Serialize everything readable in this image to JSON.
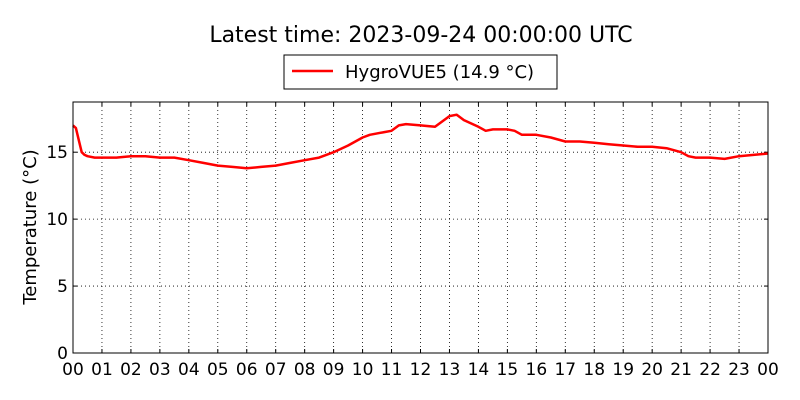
{
  "chart_data": {
    "type": "line",
    "title": "Latest time: 2023-09-24 00:00:00 UTC",
    "xlabel": "",
    "ylabel": "Temperature (°C)",
    "xlim": [
      0,
      24
    ],
    "ylim": [
      0,
      18.75
    ],
    "x_tick_values": [
      0,
      1,
      2,
      3,
      4,
      5,
      6,
      7,
      8,
      9,
      10,
      11,
      12,
      13,
      14,
      15,
      16,
      17,
      18,
      19,
      20,
      21,
      22,
      23,
      24
    ],
    "x_tick_labels": [
      "00",
      "01",
      "02",
      "03",
      "04",
      "05",
      "06",
      "07",
      "08",
      "09",
      "10",
      "11",
      "12",
      "13",
      "14",
      "15",
      "16",
      "17",
      "18",
      "19",
      "20",
      "21",
      "22",
      "23",
      "00"
    ],
    "y_tick_values": [
      0,
      5,
      10,
      15
    ],
    "y_tick_labels": [
      "0",
      "5",
      "10",
      "15"
    ],
    "grid": true,
    "legend_position": "top-center",
    "series": [
      {
        "name": "HygroVUE5 (14.9 °C)",
        "color": "#ff0000",
        "x": [
          0.0,
          0.1,
          0.2,
          0.3,
          0.4,
          0.5,
          0.75,
          1.0,
          1.5,
          2.0,
          2.5,
          3.0,
          3.5,
          4.0,
          4.5,
          5.0,
          5.5,
          6.0,
          6.5,
          7.0,
          7.5,
          8.0,
          8.5,
          9.0,
          9.5,
          10.0,
          10.25,
          10.75,
          11.0,
          11.25,
          11.5,
          12.0,
          12.5,
          13.0,
          13.25,
          13.5,
          14.0,
          14.25,
          14.5,
          15.0,
          15.25,
          15.5,
          16.0,
          16.5,
          17.0,
          17.5,
          18.0,
          18.5,
          19.0,
          19.5,
          20.0,
          20.5,
          21.0,
          21.25,
          21.5,
          22.0,
          22.5,
          23.0,
          23.5,
          24.0
        ],
        "y": [
          17.0,
          16.8,
          15.9,
          15.0,
          14.8,
          14.7,
          14.6,
          14.6,
          14.6,
          14.7,
          14.7,
          14.6,
          14.6,
          14.4,
          14.2,
          14.0,
          13.9,
          13.8,
          13.9,
          14.0,
          14.2,
          14.4,
          14.6,
          15.0,
          15.5,
          16.1,
          16.3,
          16.5,
          16.6,
          17.0,
          17.1,
          17.0,
          16.9,
          17.7,
          17.8,
          17.4,
          16.9,
          16.6,
          16.7,
          16.7,
          16.6,
          16.3,
          16.3,
          16.1,
          15.8,
          15.8,
          15.7,
          15.6,
          15.5,
          15.4,
          15.4,
          15.3,
          15.0,
          14.7,
          14.6,
          14.6,
          14.5,
          14.7,
          14.8,
          14.9
        ]
      }
    ]
  }
}
